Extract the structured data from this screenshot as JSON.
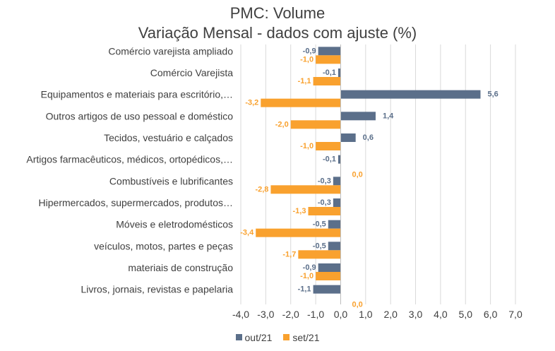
{
  "chart_data": {
    "type": "bar",
    "orientation": "horizontal",
    "title": "PMC: Volume",
    "subtitle": "Variação Mensal - dados com ajuste (%)",
    "categories": [
      "Comércio varejista ampliado",
      "Comércio Varejista",
      "Equipamentos e materiais para escritório,…",
      "Outros artigos de uso pessoal e doméstico",
      "Tecidos, vestuário e calçados",
      "Artigos farmacêuticos, médicos, ortopédicos,…",
      "Combustíveis e lubrificantes",
      "Hipermercados, supermercados, produtos…",
      "Móveis e eletrodomésticos",
      "veículos, motos, partes e peças",
      "materiais de construção",
      "Livros, jornais, revistas e papelaria"
    ],
    "series": [
      {
        "name": "out/21",
        "color": "#5B6F8A",
        "values": [
          -0.9,
          -0.1,
          5.6,
          1.4,
          0.6,
          -0.1,
          -0.3,
          -0.3,
          -0.5,
          -0.5,
          -0.9,
          -1.1
        ],
        "labels": [
          "-0,9",
          "-0,1",
          "5,6",
          "1,4",
          "0,6",
          "-0,1",
          "-0,3",
          "-0,3",
          "-0,5",
          "-0,5",
          "-0,9",
          "-1,1"
        ]
      },
      {
        "name": "set/21",
        "color": "#F9A12E",
        "values": [
          -1.0,
          -1.1,
          -3.2,
          -2.0,
          -1.0,
          0.0,
          -2.8,
          -1.3,
          -3.4,
          -1.7,
          -1.0,
          0.0
        ],
        "labels": [
          "-1,0",
          "-1,1",
          "-3,2",
          "-2,0",
          "-1,0",
          "0,0",
          "-2,8",
          "-1,3",
          "-3,4",
          "-1,7",
          "-1,0",
          "0,0"
        ]
      }
    ],
    "xlim": [
      -4.0,
      7.0
    ],
    "x_ticks": [
      -4.0,
      -3.0,
      -2.0,
      -1.0,
      0.0,
      1.0,
      2.0,
      3.0,
      4.0,
      5.0,
      6.0,
      7.0
    ],
    "x_tick_labels": [
      "-4,0",
      "-3,0",
      "-2,0",
      "-1,0",
      "0,0",
      "1,0",
      "2,0",
      "3,0",
      "4,0",
      "5,0",
      "6,0",
      "7,0"
    ],
    "grid": "vertical",
    "legend": "bottom"
  }
}
